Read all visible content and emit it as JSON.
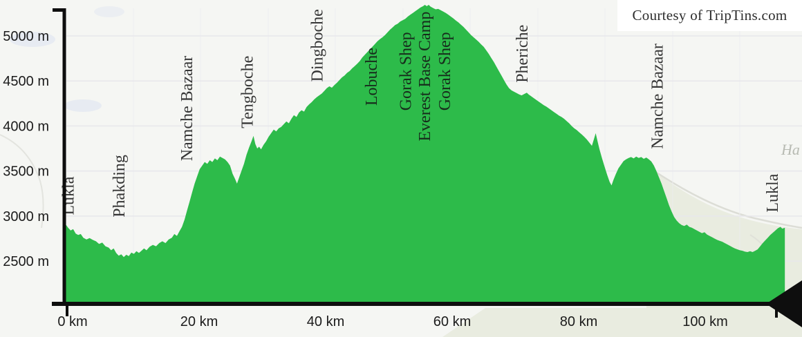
{
  "page": {
    "watermark": "Courtesy of TripTins.com",
    "map_label_fragment": "Ha"
  },
  "colors": {
    "profile_green": "#2dbb4a",
    "axis_black": "#0e0e0e",
    "grid_gray": "#e7e7eb",
    "tick_text": "#1b1b1b",
    "waypoint_text": "#141414",
    "map_background": "#f5f6f3",
    "map_terrain_sage": "#e9ece0",
    "map_road": "#dcddd6",
    "map_water": "#e4e9f1",
    "map_text_gray": "#b7bab2"
  },
  "chart_data": {
    "type": "area",
    "x_unit": "km",
    "y_unit": "m",
    "grid": "horizontal",
    "legend": "none",
    "xlim": [
      0,
      114.5
    ],
    "ylim": [
      2025,
      5430
    ],
    "x_ticks": [
      {
        "km": 0,
        "label": "0 km"
      },
      {
        "km": 20,
        "label": "20 km"
      },
      {
        "km": 40,
        "label": "40 km"
      },
      {
        "km": 60,
        "label": "60 km"
      },
      {
        "km": 80,
        "label": "80 km"
      },
      {
        "km": 100,
        "label": "100 km"
      }
    ],
    "y_ticks": [
      {
        "m": 5000,
        "label": "5000 m"
      },
      {
        "m": 4500,
        "label": "4500 m"
      },
      {
        "m": 4000,
        "label": "4000 m"
      },
      {
        "m": 3500,
        "label": "3500 m"
      },
      {
        "m": 3000,
        "label": "3000 m"
      },
      {
        "m": 2500,
        "label": "2500 m"
      }
    ],
    "waypoints": [
      {
        "label": "Lukla",
        "km": 1.5,
        "label_base_m": 3010
      },
      {
        "label": "Phakding",
        "km": 9.5,
        "label_base_m": 2985
      },
      {
        "label": "Namche Bazaar",
        "km": 20.2,
        "label_base_m": 3610
      },
      {
        "label": "Tengboche",
        "km": 29.8,
        "label_base_m": 3975
      },
      {
        "label": "Dingboche",
        "km": 40.8,
        "label_base_m": 4490
      },
      {
        "label": "Lobuche",
        "km": 49.4,
        "label_base_m": 4225
      },
      {
        "label": "Gorak Shep",
        "km": 54.8,
        "label_base_m": 4170
      },
      {
        "label": "Everest Base Camp",
        "km": 57.8,
        "label_base_m": 3830
      },
      {
        "label": "Gorak Shep",
        "km": 61.0,
        "label_base_m": 4170
      },
      {
        "label": "Pheriche",
        "km": 73.2,
        "label_base_m": 4480
      },
      {
        "label": "Namche Bazaar",
        "km": 94.6,
        "label_base_m": 3745
      },
      {
        "label": "Lukla",
        "km": 112.8,
        "label_base_m": 3040
      }
    ],
    "series": [
      {
        "name": "elevation-profile",
        "color": "#2dbb4a",
        "points": [
          [
            0,
            2860
          ],
          [
            0.3,
            2900
          ],
          [
            0.6,
            2870
          ],
          [
            1.0,
            2840
          ],
          [
            1.4,
            2855
          ],
          [
            1.8,
            2805
          ],
          [
            2.2,
            2790
          ],
          [
            2.6,
            2800
          ],
          [
            3.0,
            2760
          ],
          [
            3.5,
            2740
          ],
          [
            4.0,
            2755
          ],
          [
            4.5,
            2735
          ],
          [
            5.0,
            2720
          ],
          [
            5.5,
            2690
          ],
          [
            6.0,
            2705
          ],
          [
            6.5,
            2665
          ],
          [
            7.0,
            2650
          ],
          [
            7.4,
            2620
          ],
          [
            7.8,
            2640
          ],
          [
            8.2,
            2590
          ],
          [
            8.6,
            2560
          ],
          [
            9.0,
            2575
          ],
          [
            9.4,
            2545
          ],
          [
            9.8,
            2570
          ],
          [
            10.2,
            2555
          ],
          [
            10.6,
            2595
          ],
          [
            11.0,
            2580
          ],
          [
            11.4,
            2610
          ],
          [
            11.8,
            2590
          ],
          [
            12.2,
            2615
          ],
          [
            12.6,
            2640
          ],
          [
            13.0,
            2620
          ],
          [
            13.5,
            2660
          ],
          [
            14.0,
            2680
          ],
          [
            14.5,
            2665
          ],
          [
            15.0,
            2700
          ],
          [
            15.5,
            2720
          ],
          [
            16.0,
            2700
          ],
          [
            16.5,
            2740
          ],
          [
            17.0,
            2760
          ],
          [
            17.4,
            2800
          ],
          [
            17.8,
            2780
          ],
          [
            18.2,
            2830
          ],
          [
            18.6,
            2880
          ],
          [
            19.0,
            2960
          ],
          [
            19.4,
            3060
          ],
          [
            19.8,
            3160
          ],
          [
            20.2,
            3260
          ],
          [
            20.6,
            3360
          ],
          [
            21.0,
            3440
          ],
          [
            21.4,
            3520
          ],
          [
            21.8,
            3560
          ],
          [
            22.2,
            3600
          ],
          [
            22.6,
            3580
          ],
          [
            23.0,
            3620
          ],
          [
            23.4,
            3600
          ],
          [
            23.8,
            3640
          ],
          [
            24.2,
            3620
          ],
          [
            24.6,
            3660
          ],
          [
            25.0,
            3645
          ],
          [
            25.4,
            3630
          ],
          [
            25.8,
            3600
          ],
          [
            26.2,
            3560
          ],
          [
            26.6,
            3470
          ],
          [
            27.0,
            3410
          ],
          [
            27.3,
            3360
          ],
          [
            27.6,
            3420
          ],
          [
            28.0,
            3500
          ],
          [
            28.4,
            3580
          ],
          [
            28.8,
            3680
          ],
          [
            29.2,
            3760
          ],
          [
            29.6,
            3830
          ],
          [
            29.9,
            3890
          ],
          [
            30.2,
            3800
          ],
          [
            30.5,
            3750
          ],
          [
            30.8,
            3770
          ],
          [
            31.1,
            3740
          ],
          [
            31.5,
            3790
          ],
          [
            31.9,
            3830
          ],
          [
            32.3,
            3880
          ],
          [
            32.7,
            3920
          ],
          [
            33.1,
            3960
          ],
          [
            33.5,
            3940
          ],
          [
            33.9,
            3975
          ],
          [
            34.3,
            3990
          ],
          [
            34.7,
            4020
          ],
          [
            35.1,
            4050
          ],
          [
            35.5,
            4030
          ],
          [
            35.9,
            4080
          ],
          [
            36.3,
            4120
          ],
          [
            36.7,
            4100
          ],
          [
            37.1,
            4150
          ],
          [
            37.5,
            4175
          ],
          [
            37.9,
            4160
          ],
          [
            38.3,
            4210
          ],
          [
            38.7,
            4240
          ],
          [
            39.1,
            4265
          ],
          [
            39.5,
            4295
          ],
          [
            39.9,
            4320
          ],
          [
            40.3,
            4340
          ],
          [
            40.7,
            4360
          ],
          [
            41.1,
            4390
          ],
          [
            41.5,
            4420
          ],
          [
            41.9,
            4440
          ],
          [
            42.3,
            4425
          ],
          [
            42.7,
            4455
          ],
          [
            43.1,
            4480
          ],
          [
            43.5,
            4510
          ],
          [
            43.9,
            4540
          ],
          [
            44.3,
            4560
          ],
          [
            44.7,
            4590
          ],
          [
            45.1,
            4610
          ],
          [
            45.5,
            4640
          ],
          [
            45.9,
            4665
          ],
          [
            46.3,
            4690
          ],
          [
            46.7,
            4720
          ],
          [
            47.1,
            4760
          ],
          [
            47.5,
            4790
          ],
          [
            47.9,
            4820
          ],
          [
            48.3,
            4850
          ],
          [
            48.7,
            4880
          ],
          [
            49.1,
            4910
          ],
          [
            49.5,
            4940
          ],
          [
            49.9,
            4965
          ],
          [
            50.3,
            4985
          ],
          [
            50.7,
            5010
          ],
          [
            51.1,
            5040
          ],
          [
            51.5,
            5070
          ],
          [
            51.9,
            5095
          ],
          [
            52.3,
            5120
          ],
          [
            52.7,
            5135
          ],
          [
            53.1,
            5160
          ],
          [
            53.5,
            5175
          ],
          [
            53.9,
            5190
          ],
          [
            54.3,
            5215
          ],
          [
            54.7,
            5235
          ],
          [
            55.1,
            5255
          ],
          [
            55.5,
            5275
          ],
          [
            55.9,
            5295
          ],
          [
            56.3,
            5315
          ],
          [
            56.7,
            5330
          ],
          [
            57.0,
            5345
          ],
          [
            57.3,
            5330
          ],
          [
            57.6,
            5345
          ],
          [
            57.9,
            5325
          ],
          [
            58.3,
            5310
          ],
          [
            58.7,
            5295
          ],
          [
            59.1,
            5300
          ],
          [
            59.5,
            5285
          ],
          [
            59.9,
            5270
          ],
          [
            60.3,
            5255
          ],
          [
            60.7,
            5235
          ],
          [
            61.1,
            5215
          ],
          [
            61.5,
            5195
          ],
          [
            61.9,
            5170
          ],
          [
            62.3,
            5150
          ],
          [
            62.7,
            5125
          ],
          [
            63.1,
            5100
          ],
          [
            63.5,
            5070
          ],
          [
            63.9,
            5040
          ],
          [
            64.3,
            5010
          ],
          [
            64.7,
            4985
          ],
          [
            65.1,
            4960
          ],
          [
            65.5,
            4935
          ],
          [
            65.9,
            4905
          ],
          [
            66.3,
            4880
          ],
          [
            66.7,
            4840
          ],
          [
            67.1,
            4800
          ],
          [
            67.5,
            4755
          ],
          [
            67.9,
            4710
          ],
          [
            68.3,
            4660
          ],
          [
            68.7,
            4610
          ],
          [
            69.1,
            4560
          ],
          [
            69.5,
            4510
          ],
          [
            69.9,
            4460
          ],
          [
            70.3,
            4420
          ],
          [
            70.7,
            4395
          ],
          [
            71.1,
            4380
          ],
          [
            71.5,
            4365
          ],
          [
            71.9,
            4350
          ],
          [
            72.3,
            4340
          ],
          [
            72.7,
            4355
          ],
          [
            73.1,
            4370
          ],
          [
            73.4,
            4350
          ],
          [
            73.8,
            4330
          ],
          [
            74.2,
            4310
          ],
          [
            74.6,
            4290
          ],
          [
            75.0,
            4270
          ],
          [
            75.4,
            4250
          ],
          [
            75.8,
            4230
          ],
          [
            76.2,
            4215
          ],
          [
            76.6,
            4195
          ],
          [
            77.0,
            4175
          ],
          [
            77.4,
            4155
          ],
          [
            77.8,
            4135
          ],
          [
            78.2,
            4115
          ],
          [
            78.6,
            4100
          ],
          [
            79.0,
            4080
          ],
          [
            79.4,
            4055
          ],
          [
            79.8,
            4030
          ],
          [
            80.2,
            4000
          ],
          [
            80.6,
            3975
          ],
          [
            81.0,
            3955
          ],
          [
            81.4,
            3930
          ],
          [
            81.8,
            3905
          ],
          [
            82.2,
            3880
          ],
          [
            82.6,
            3850
          ],
          [
            83.0,
            3815
          ],
          [
            83.4,
            3780
          ],
          [
            83.7,
            3850
          ],
          [
            84.0,
            3920
          ],
          [
            84.3,
            3830
          ],
          [
            84.6,
            3740
          ],
          [
            85.0,
            3640
          ],
          [
            85.4,
            3550
          ],
          [
            85.8,
            3460
          ],
          [
            86.2,
            3380
          ],
          [
            86.5,
            3340
          ],
          [
            86.8,
            3400
          ],
          [
            87.2,
            3470
          ],
          [
            87.6,
            3530
          ],
          [
            88.0,
            3570
          ],
          [
            88.4,
            3610
          ],
          [
            88.8,
            3630
          ],
          [
            89.2,
            3645
          ],
          [
            89.6,
            3655
          ],
          [
            90.0,
            3640
          ],
          [
            90.4,
            3660
          ],
          [
            90.8,
            3645
          ],
          [
            91.2,
            3655
          ],
          [
            91.6,
            3635
          ],
          [
            92.0,
            3650
          ],
          [
            92.4,
            3630
          ],
          [
            92.8,
            3605
          ],
          [
            93.2,
            3560
          ],
          [
            93.6,
            3500
          ],
          [
            94.0,
            3430
          ],
          [
            94.4,
            3360
          ],
          [
            94.8,
            3280
          ],
          [
            95.2,
            3200
          ],
          [
            95.6,
            3120
          ],
          [
            96.0,
            3050
          ],
          [
            96.4,
            2990
          ],
          [
            96.8,
            2950
          ],
          [
            97.2,
            2920
          ],
          [
            97.6,
            2900
          ],
          [
            98.0,
            2890
          ],
          [
            98.4,
            2905
          ],
          [
            98.8,
            2880
          ],
          [
            99.2,
            2870
          ],
          [
            99.6,
            2855
          ],
          [
            100.0,
            2840
          ],
          [
            100.4,
            2825
          ],
          [
            100.8,
            2810
          ],
          [
            101.2,
            2820
          ],
          [
            101.6,
            2795
          ],
          [
            102.0,
            2780
          ],
          [
            102.4,
            2765
          ],
          [
            102.8,
            2750
          ],
          [
            103.2,
            2735
          ],
          [
            103.6,
            2725
          ],
          [
            104.0,
            2715
          ],
          [
            104.4,
            2700
          ],
          [
            104.8,
            2685
          ],
          [
            105.2,
            2670
          ],
          [
            105.6,
            2655
          ],
          [
            106.0,
            2640
          ],
          [
            106.4,
            2630
          ],
          [
            106.8,
            2620
          ],
          [
            107.2,
            2615
          ],
          [
            107.6,
            2605
          ],
          [
            108.0,
            2600
          ],
          [
            108.4,
            2610
          ],
          [
            108.8,
            2600
          ],
          [
            109.2,
            2615
          ],
          [
            109.6,
            2630
          ],
          [
            110.0,
            2665
          ],
          [
            110.4,
            2700
          ],
          [
            110.8,
            2730
          ],
          [
            111.2,
            2760
          ],
          [
            111.6,
            2790
          ],
          [
            112.0,
            2815
          ],
          [
            112.4,
            2840
          ],
          [
            112.8,
            2865
          ],
          [
            113.2,
            2880
          ],
          [
            113.5,
            2860
          ],
          [
            113.9,
            2870
          ]
        ]
      }
    ]
  }
}
